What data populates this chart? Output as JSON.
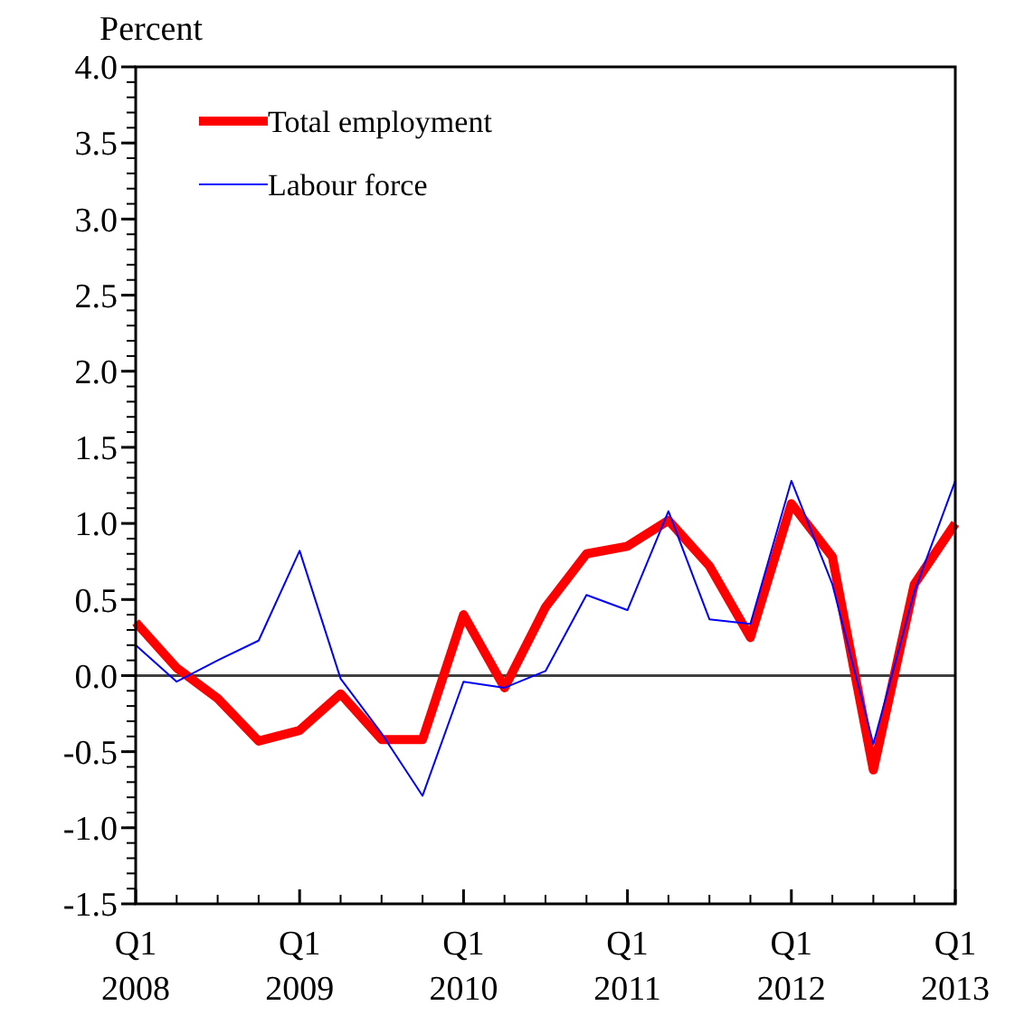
{
  "chart_data": {
    "type": "line",
    "ylabel": "Percent",
    "categories": [
      "Q1\n2008",
      null,
      null,
      null,
      "Q1\n2009",
      null,
      null,
      null,
      "Q1\n2010",
      null,
      null,
      null,
      "Q1\n2011",
      null,
      null,
      null,
      "Q1\n2012",
      null,
      null,
      null,
      "Q1\n2013"
    ],
    "series": [
      {
        "name": "Total employment",
        "color": "#ff0000",
        "values": [
          0.35,
          0.05,
          -0.15,
          -0.43,
          -0.36,
          -0.12,
          -0.42,
          -0.42,
          0.4,
          -0.08,
          0.45,
          0.8,
          0.85,
          1.02,
          0.72,
          0.25,
          1.13,
          0.78,
          -0.62,
          0.6,
          1.0
        ]
      },
      {
        "name": "Labour force",
        "color": "#0000ff",
        "values": [
          0.2,
          -0.04,
          0.1,
          0.23,
          0.82,
          -0.02,
          -0.38,
          -0.79,
          -0.04,
          -0.08,
          0.03,
          0.53,
          0.43,
          1.08,
          0.37,
          0.34,
          1.28,
          0.6,
          -0.45,
          0.55,
          1.28
        ]
      }
    ],
    "ylim": [
      -1.5,
      4
    ],
    "yticks": [
      {
        "value": -1.5,
        "label": "-1.5"
      },
      {
        "value": -1,
        "label": "-1.0"
      },
      {
        "value": -0.5,
        "label": "-0.5"
      },
      {
        "value": 0,
        "label": "0.0"
      },
      {
        "value": 0.5,
        "label": "0.5"
      },
      {
        "value": 1,
        "label": "1.0"
      },
      {
        "value": 1.5,
        "label": "1.5"
      },
      {
        "value": 2,
        "label": "2.0"
      },
      {
        "value": 2.5,
        "label": "2.5"
      },
      {
        "value": 3,
        "label": "3.0"
      },
      {
        "value": 3.5,
        "label": "3.5"
      },
      {
        "value": 4,
        "label": "4.0"
      }
    ],
    "ref_lines": [
      {
        "axis": "y",
        "value": 0,
        "color": "#404040"
      }
    ],
    "grid": false,
    "legend": "top left",
    "marker": "none",
    "line_style": "solid"
  }
}
